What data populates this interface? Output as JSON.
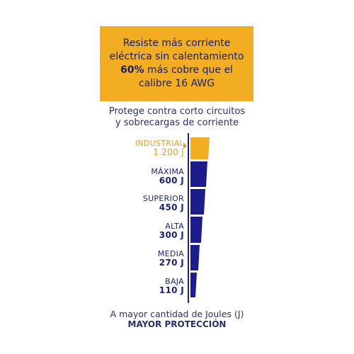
{
  "banner": {
    "line1": "Resiste más corriente",
    "line2": "eléctrica sin calentamiento",
    "line3_bold": "60%",
    "line3_rest": " más cobre que el",
    "line4": "calibre 16 AWG",
    "background": "#f2ad22",
    "text_color": "#1a1f66"
  },
  "subtitle": {
    "line1": "Protege contra corto circuitos",
    "line2": "y sobrecargas de corriente"
  },
  "levels": [
    {
      "name": "INDUSTRIAL",
      "value": "1 200 J",
      "joules": 1200,
      "color": "#f2ad22",
      "active": true
    },
    {
      "name": "MÁXIMA",
      "value": "600 J",
      "joules": 600,
      "color": "#1c1c8c",
      "active": false
    },
    {
      "name": "SUPERIOR",
      "value": "450 J",
      "joules": 450,
      "color": "#1c1c8c",
      "active": false
    },
    {
      "name": "ALTA",
      "value": "300 J",
      "joules": 300,
      "color": "#1c1c8c",
      "active": false
    },
    {
      "name": "MEDIA",
      "value": "270 J",
      "joules": 270,
      "color": "#1c1c8c",
      "active": false
    },
    {
      "name": "BAJA",
      "value": "110 J",
      "joules": 110,
      "color": "#1c1c8c",
      "active": false
    }
  ],
  "footer": {
    "line1": "A mayor cantidad de Joules (J)",
    "line2": "MAYOR PROTECCIÓN"
  }
}
